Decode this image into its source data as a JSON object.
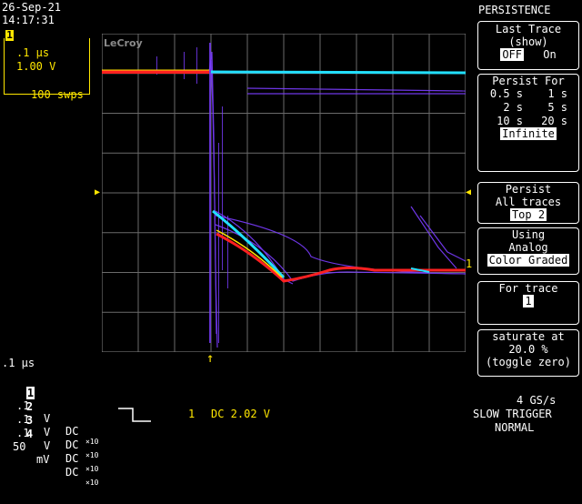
{
  "header": {
    "date": "26-Sep-21",
    "time": "14:17:31",
    "timebase": ".1 μs",
    "volts": "1.00 V",
    "sweeps": "100 swps",
    "brand": "LeCroy"
  },
  "menu": {
    "title": "PERSISTENCE",
    "last_trace": {
      "title": "Last Trace",
      "subtitle": "(show)",
      "off": "OFF",
      "on": "On",
      "selected": "OFF"
    },
    "persist_for": {
      "title": "Persist For",
      "options": [
        "0.5 s",
        "1 s",
        "2 s",
        "5 s",
        "10 s",
        "20 s"
      ],
      "selected": "Infinite"
    },
    "persist": {
      "title": "Persist",
      "value": "All traces",
      "selected": "Top 2"
    },
    "using": {
      "title": "Using",
      "option": "Analog",
      "selected": "Color Graded"
    },
    "for_trace": {
      "title": "For trace",
      "value": "1"
    },
    "saturate": {
      "title": "saturate at",
      "value": "20.0 %",
      "note": "(toggle zero)"
    }
  },
  "bottom": {
    "timebase": ".1 μs",
    "channels": [
      {
        "num": "1",
        "scale": ".1",
        "unit": "V",
        "coupling": "DC",
        "mult": "×10"
      },
      {
        "num": "2",
        "scale": ".1",
        "unit": "V",
        "coupling": "DC",
        "mult": "×10"
      },
      {
        "num": "3",
        "scale": ".1",
        "unit": "V",
        "coupling": "DC",
        "mult": "×10"
      },
      {
        "num": "4",
        "scale": "50",
        "unit": "mV",
        "coupling": "DC",
        "mult": "×10"
      }
    ],
    "trigger_channel": "1",
    "trigger_level": "DC 2.02 V",
    "sample_rate": "4 GS/s",
    "trigger_mode": "SLOW TRIGGER",
    "trigger_state": "NORMAL",
    "trace_marker": "1"
  },
  "colors": {
    "accent": "#ffe700",
    "trace_low": "#7a3cff",
    "trace_high": "#ff2020",
    "trace_mid": "#22e0ff"
  }
}
